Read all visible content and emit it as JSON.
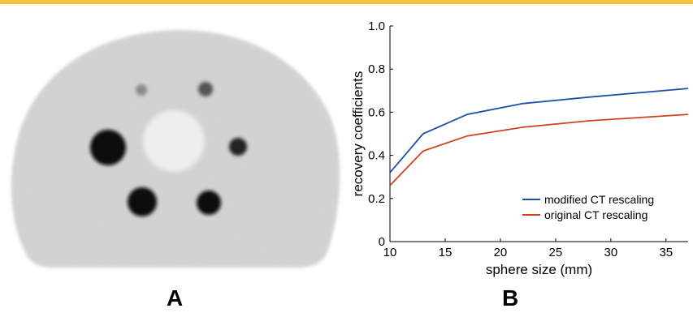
{
  "panels": {
    "a_label": "A",
    "b_label": "B"
  },
  "chart_data": {
    "type": "line",
    "title": "",
    "xlabel": "sphere size (mm)",
    "ylabel": "recovery coefficients",
    "xlim": [
      10,
      37
    ],
    "ylim": [
      0,
      1.0
    ],
    "xticks": [
      10,
      15,
      20,
      25,
      30,
      35
    ],
    "xtick_labels": [
      "10",
      "15",
      "20",
      "25",
      "30",
      "35"
    ],
    "yticks": [
      0,
      0.2,
      0.4,
      0.6,
      0.8,
      1.0
    ],
    "ytick_labels": [
      "0",
      "0.2",
      "0.4",
      "0.6",
      "0.8",
      "1.0"
    ],
    "grid": false,
    "legend_position": "bottom-right",
    "series": [
      {
        "name": "modified CT rescaling",
        "color": "#1f4fa8",
        "x": [
          10,
          13,
          17,
          22,
          28,
          37
        ],
        "y": [
          0.32,
          0.5,
          0.59,
          0.64,
          0.67,
          0.71
        ]
      },
      {
        "name": "original CT rescaling",
        "color": "#d2401f",
        "x": [
          10,
          13,
          17,
          22,
          28,
          37
        ],
        "y": [
          0.26,
          0.42,
          0.49,
          0.53,
          0.56,
          0.59
        ]
      }
    ]
  }
}
